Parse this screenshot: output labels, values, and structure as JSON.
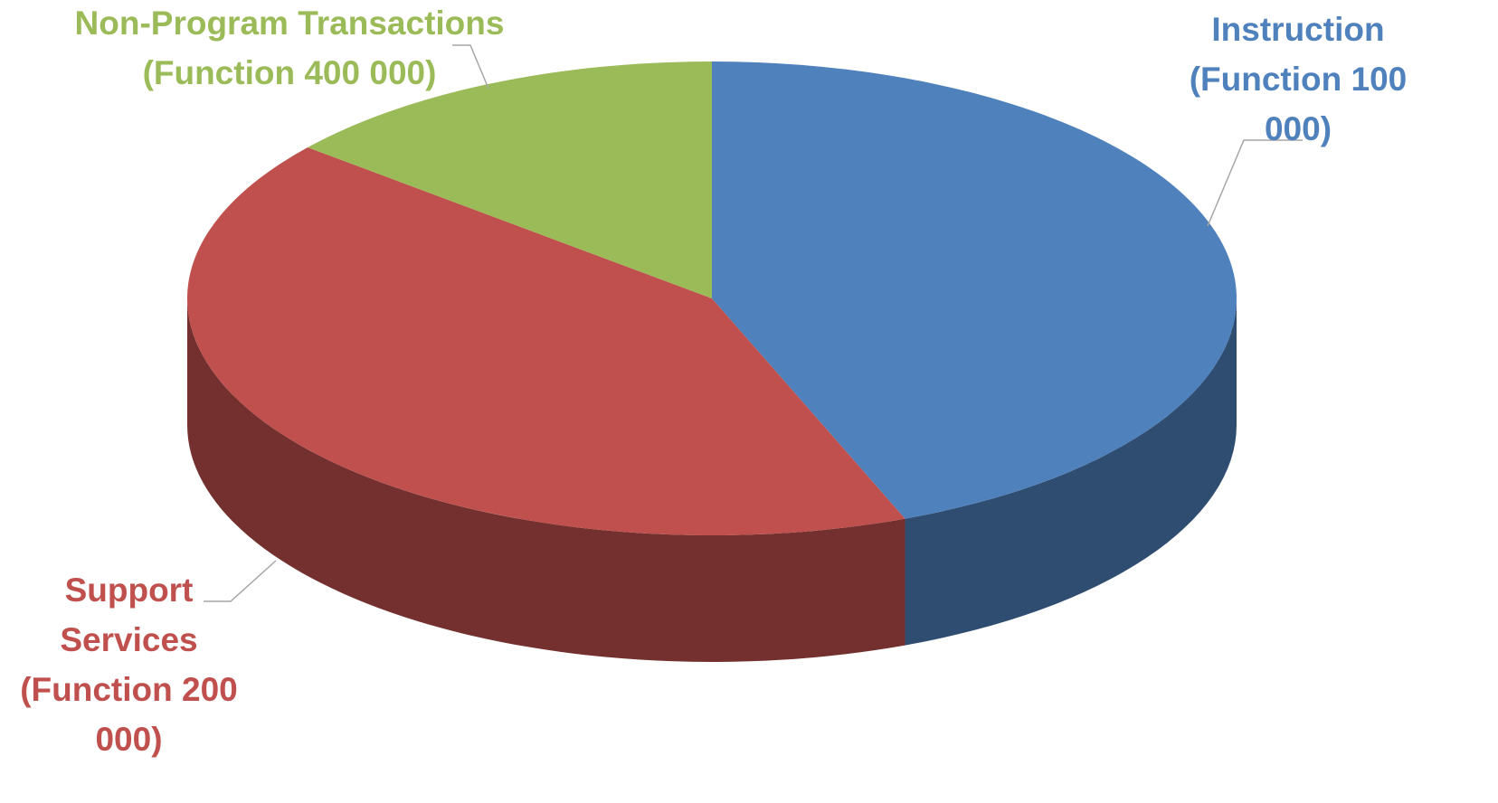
{
  "chart_data": {
    "type": "pie",
    "categories": [
      "Instruction (Function 100 000)",
      "Support Services (Function 200 000)",
      "Non-Program Transactions (Function 400 000)"
    ],
    "values": [
      44,
      42,
      14
    ],
    "colors": [
      "#4f81bd",
      "#c0504d",
      "#9bbb59"
    ]
  }
}
